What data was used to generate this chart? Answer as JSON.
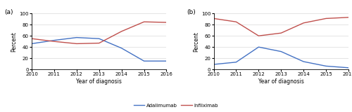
{
  "years": [
    2010,
    2011,
    2012,
    2013,
    2014,
    2015,
    2016
  ],
  "panel_a": {
    "title": "(a)",
    "adalimumab": [
      46,
      52,
      57,
      55,
      38,
      15,
      15
    ],
    "infliximab": [
      55,
      50,
      46,
      47,
      68,
      85,
      84
    ],
    "ylabel": "Percent",
    "xlabel": "Year of diagnosis",
    "ylim": [
      0,
      100
    ],
    "yticks": [
      0,
      20,
      40,
      60,
      80,
      100
    ]
  },
  "panel_b": {
    "title": "(b)",
    "adalimumab": [
      9,
      13,
      40,
      32,
      14,
      6,
      3
    ],
    "infliximab": [
      91,
      85,
      60,
      65,
      83,
      91,
      93
    ],
    "ylabel": "Percent",
    "xlabel": "Year of diagnosis",
    "ylim": [
      0,
      100
    ],
    "yticks": [
      0,
      20,
      40,
      60,
      80,
      100
    ]
  },
  "adalimumab_color": "#4472c4",
  "infliximab_color": "#c0504d",
  "line_width": 1.0,
  "legend_labels": [
    "Adalimumab",
    "Infliximab"
  ],
  "tick_fontsize": 5.0,
  "label_fontsize": 5.5,
  "title_fontsize": 6.5
}
